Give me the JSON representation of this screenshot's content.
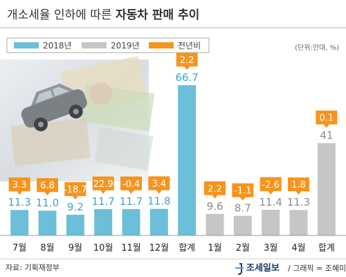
{
  "header": {
    "title_part1": "개소세율 인하에 따른 ",
    "title_part2": "자동차 판매 추이"
  },
  "chart_data": {
    "type": "bar",
    "unit": "(단위:만대, %)",
    "legend": [
      {
        "label": "2018년",
        "color": "#6cbfd9"
      },
      {
        "label": "2019년",
        "color": "#c6c6c6"
      },
      {
        "label": "전년비",
        "color": "#f7941d"
      }
    ],
    "ylim": [
      0,
      70
    ],
    "categories": [
      {
        "label": "7월",
        "value": 11.3,
        "value_label": "11.3",
        "yoy": "3.3",
        "series": "2018년"
      },
      {
        "label": "8월",
        "value": 11.0,
        "value_label": "11.0",
        "yoy": "6.8",
        "series": "2018년"
      },
      {
        "label": "9월",
        "value": 9.2,
        "value_label": "9.2",
        "yoy": "-18.7",
        "series": "2018년"
      },
      {
        "label": "10월",
        "value": 11.7,
        "value_label": "11.7",
        "yoy": "22.9",
        "series": "2018년"
      },
      {
        "label": "11월",
        "value": 11.7,
        "value_label": "11.7",
        "yoy": "-0.4",
        "series": "2018년"
      },
      {
        "label": "12월",
        "value": 11.8,
        "value_label": "11.8",
        "yoy": "3.4",
        "series": "2018년"
      },
      {
        "label": "합계",
        "value": 66.7,
        "value_label": "66.7",
        "yoy": "2.2",
        "series": "2018년"
      },
      {
        "label": "1월",
        "value": 9.6,
        "value_label": "9.6",
        "yoy": "2.2",
        "series": "2019년"
      },
      {
        "label": "2월",
        "value": 8.7,
        "value_label": "8.7",
        "yoy": "-1.1",
        "series": "2019년"
      },
      {
        "label": "3월",
        "value": 11.4,
        "value_label": "11.4",
        "yoy": "-2.6",
        "series": "2019년"
      },
      {
        "label": "4월",
        "value": 11.3,
        "value_label": "11.3",
        "yoy": "1.8",
        "series": "2019년"
      },
      {
        "label": "합계",
        "value": 41,
        "value_label": "41",
        "yoy": "0.1",
        "series": "2019년"
      }
    ],
    "colors": {
      "value_2018": "#3aa6c8",
      "value_2019": "#8a8a8a",
      "tag": "#f7941d"
    }
  },
  "footer": {
    "source": "자료: 기획재정부",
    "logo": "조세일보",
    "credit": "/ 그래픽 = 조혜미"
  }
}
